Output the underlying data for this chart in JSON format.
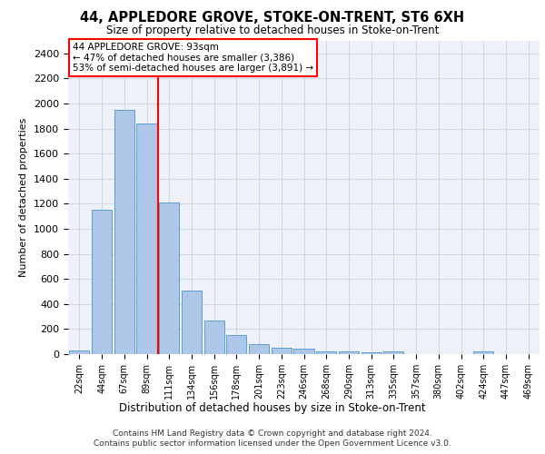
{
  "title": "44, APPLEDORE GROVE, STOKE-ON-TRENT, ST6 6XH",
  "subtitle": "Size of property relative to detached houses in Stoke-on-Trent",
  "xlabel": "Distribution of detached houses by size in Stoke-on-Trent",
  "ylabel": "Number of detached properties",
  "bar_values": [
    30,
    1150,
    1950,
    1840,
    1210,
    510,
    265,
    155,
    80,
    50,
    45,
    25,
    20,
    15,
    20,
    0,
    0,
    0,
    20,
    0,
    0
  ],
  "bar_labels": [
    "22sqm",
    "44sqm",
    "67sqm",
    "89sqm",
    "111sqm",
    "134sqm",
    "156sqm",
    "178sqm",
    "201sqm",
    "223sqm",
    "246sqm",
    "268sqm",
    "290sqm",
    "313sqm",
    "335sqm",
    "357sqm",
    "380sqm",
    "402sqm",
    "424sqm",
    "447sqm",
    "469sqm"
  ],
  "bar_color": "#aec6e8",
  "bar_edge_color": "#5a9fd4",
  "vline_color": "red",
  "annotation_title": "44 APPLEDORE GROVE: 93sqm",
  "annotation_line1": "← 47% of detached houses are smaller (3,386)",
  "annotation_line2": "53% of semi-detached houses are larger (3,891) →",
  "ylim": [
    0,
    2500
  ],
  "yticks": [
    0,
    200,
    400,
    600,
    800,
    1000,
    1200,
    1400,
    1600,
    1800,
    2000,
    2200,
    2400
  ],
  "grid_color": "#d0d8e8",
  "background_color": "#eef2f8",
  "footer_line1": "Contains HM Land Registry data © Crown copyright and database right 2024.",
  "footer_line2": "Contains public sector information licensed under the Open Government Licence v3.0."
}
